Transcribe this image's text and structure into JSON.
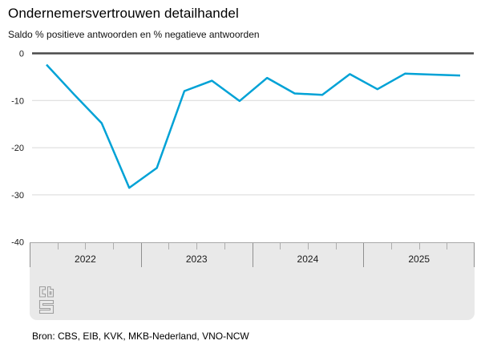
{
  "header": {
    "title": "Ondernemersvertrouwen detailhandel",
    "subtitle": "Saldo % positieve antwoorden en % negatieve antwoorden"
  },
  "footer": {
    "source": "Bron: CBS, EIB, KVK, MKB-Nederland, VNO-NCW",
    "logo_icon": "cbs-logo"
  },
  "colors": {
    "line": "#00a2d6",
    "zero_line": "#4a4a4a",
    "gridline": "#d9d9d9",
    "axis_panel_bg": "#e9e9e9",
    "axis_panel_border": "#a8a8a8",
    "tick_major": "#8f8f8f",
    "tick_minor": "#adadad",
    "text": "#1a1a1a",
    "logo": "#9e9e9e"
  },
  "chart_data": {
    "type": "line",
    "title": "Ondernemersvertrouwen detailhandel",
    "subtitle": "Saldo % positieve antwoorden en % negatieve antwoorden",
    "series": [
      {
        "name": "Ondernemersvertrouwen detailhandel",
        "values": [
          -2.4,
          -8.7,
          -14.8,
          -28.5,
          -24.3,
          -8.0,
          -5.8,
          -10.1,
          -5.2,
          -8.5,
          -8.8,
          -4.4,
          -7.6,
          -4.3,
          -4.5,
          -4.7
        ]
      }
    ],
    "x": [
      "2022 Q1",
      "2022 Q2",
      "2022 Q3",
      "2022 Q4",
      "2023 Q1",
      "2023 Q2",
      "2023 Q3",
      "2023 Q4",
      "2024 Q1",
      "2024 Q2",
      "2024 Q3",
      "2024 Q4",
      "2025 Q1",
      "2025 Q2",
      "2025 Q3",
      "2025 Q4"
    ],
    "year_labels": [
      "2022",
      "2023",
      "2024",
      "2025"
    ],
    "quarters_per_year": 4,
    "ylim": [
      -40,
      0
    ],
    "yticks": [
      0,
      -10,
      -20,
      -30,
      -40
    ],
    "ytick_labels": [
      "0",
      "-10",
      "-20",
      "-30",
      "-40"
    ],
    "xlabel": "",
    "ylabel": "Saldo % positieve antwoorden en % negatieve antwoorden",
    "grid": true,
    "legend": false
  }
}
